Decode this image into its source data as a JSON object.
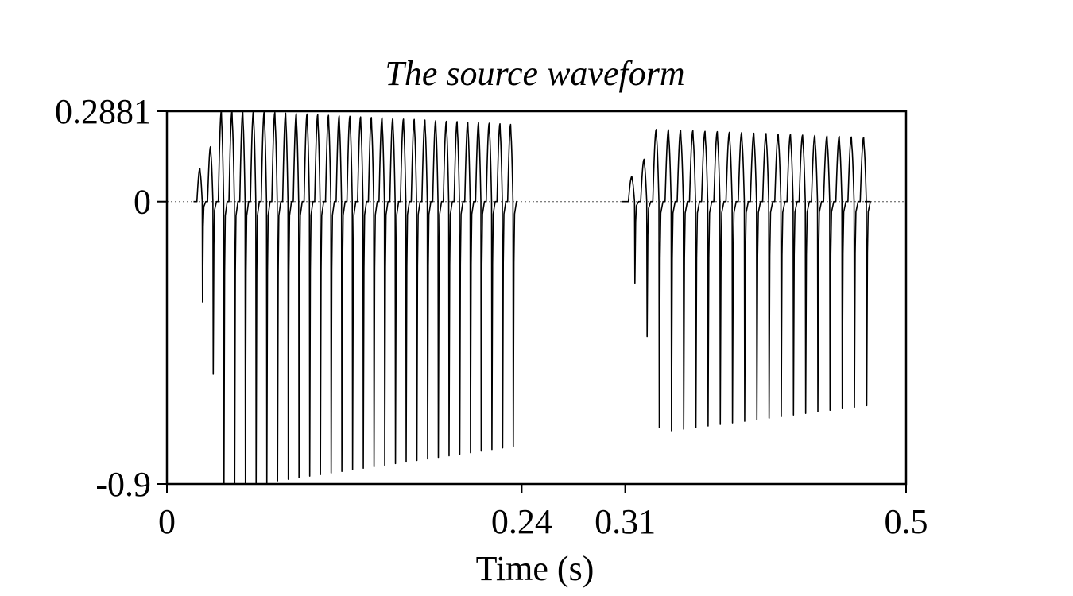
{
  "chart_data": {
    "type": "line",
    "title": "The source waveform",
    "xlabel": "Time (s)",
    "ylabel": "",
    "xlim": [
      0,
      0.5
    ],
    "ylim": [
      -0.9,
      0.2881
    ],
    "x_ticks": [
      "0",
      "0.24",
      "0.31",
      "0.5"
    ],
    "x_tick_values": [
      0,
      0.24,
      0.31,
      0.5
    ],
    "y_ticks": [
      "0.2881",
      "0",
      "-0.9"
    ],
    "y_tick_values": [
      0.2881,
      0,
      -0.9
    ],
    "zero_line": "dotted",
    "grid": false,
    "legend": "none",
    "colors": {
      "trace": "#000000",
      "axes": "#000000",
      "background": "#ffffff"
    },
    "series": [
      {
        "segment": 1,
        "start": 0.018,
        "end": 0.237,
        "pulses": [
          {
            "t": 0.021,
            "peak": 0.105,
            "trough": -0.32
          },
          {
            "t": 0.0282,
            "peak": 0.175,
            "trough": -0.55
          },
          {
            "t": 0.0355,
            "peak": 0.2881,
            "trough": -0.9
          },
          {
            "t": 0.0427,
            "peak": 0.2881,
            "trough": -0.9
          },
          {
            "t": 0.05,
            "peak": 0.2881,
            "trough": -0.9
          },
          {
            "t": 0.0572,
            "peak": 0.2881,
            "trough": -0.9
          },
          {
            "t": 0.0645,
            "peak": 0.286,
            "trough": -0.9
          },
          {
            "t": 0.0717,
            "peak": 0.284,
            "trough": -0.89
          },
          {
            "t": 0.079,
            "peak": 0.282,
            "trough": -0.885
          },
          {
            "t": 0.0862,
            "peak": 0.28,
            "trough": -0.88
          },
          {
            "t": 0.0935,
            "peak": 0.279,
            "trough": -0.875
          },
          {
            "t": 0.1007,
            "peak": 0.277,
            "trough": -0.87
          },
          {
            "t": 0.108,
            "peak": 0.275,
            "trough": -0.865
          },
          {
            "t": 0.1152,
            "peak": 0.273,
            "trough": -0.86
          },
          {
            "t": 0.1225,
            "peak": 0.272,
            "trough": -0.855
          },
          {
            "t": 0.1297,
            "peak": 0.27,
            "trough": -0.85
          },
          {
            "t": 0.137,
            "peak": 0.268,
            "trough": -0.845
          },
          {
            "t": 0.1442,
            "peak": 0.267,
            "trough": -0.84
          },
          {
            "t": 0.1515,
            "peak": 0.265,
            "trough": -0.835
          },
          {
            "t": 0.1587,
            "peak": 0.263,
            "trough": -0.83
          },
          {
            "t": 0.166,
            "peak": 0.262,
            "trough": -0.825
          },
          {
            "t": 0.1732,
            "peak": 0.26,
            "trough": -0.82
          },
          {
            "t": 0.1805,
            "peak": 0.258,
            "trough": -0.815
          },
          {
            "t": 0.1877,
            "peak": 0.256,
            "trough": -0.81
          },
          {
            "t": 0.195,
            "peak": 0.255,
            "trough": -0.805
          },
          {
            "t": 0.2022,
            "peak": 0.253,
            "trough": -0.8
          },
          {
            "t": 0.2095,
            "peak": 0.251,
            "trough": -0.795
          },
          {
            "t": 0.2167,
            "peak": 0.25,
            "trough": -0.79
          },
          {
            "t": 0.224,
            "peak": 0.248,
            "trough": -0.785
          },
          {
            "t": 0.2312,
            "peak": 0.246,
            "trough": -0.78
          }
        ]
      },
      {
        "segment": 2,
        "start": 0.308,
        "end": 0.472,
        "pulses": [
          {
            "t": 0.313,
            "peak": 0.08,
            "trough": -0.26
          },
          {
            "t": 0.3213,
            "peak": 0.135,
            "trough": -0.43
          },
          {
            "t": 0.3295,
            "peak": 0.23,
            "trough": -0.72
          },
          {
            "t": 0.3378,
            "peak": 0.229,
            "trough": -0.73
          },
          {
            "t": 0.346,
            "peak": 0.227,
            "trough": -0.725
          },
          {
            "t": 0.3543,
            "peak": 0.226,
            "trough": -0.72
          },
          {
            "t": 0.3625,
            "peak": 0.224,
            "trough": -0.715
          },
          {
            "t": 0.3708,
            "peak": 0.223,
            "trough": -0.71
          },
          {
            "t": 0.379,
            "peak": 0.221,
            "trough": -0.705
          },
          {
            "t": 0.3873,
            "peak": 0.22,
            "trough": -0.7
          },
          {
            "t": 0.3955,
            "peak": 0.218,
            "trough": -0.695
          },
          {
            "t": 0.4038,
            "peak": 0.217,
            "trough": -0.69
          },
          {
            "t": 0.412,
            "peak": 0.215,
            "trough": -0.685
          },
          {
            "t": 0.4203,
            "peak": 0.214,
            "trough": -0.68
          },
          {
            "t": 0.4285,
            "peak": 0.212,
            "trough": -0.675
          },
          {
            "t": 0.4368,
            "peak": 0.211,
            "trough": -0.67
          },
          {
            "t": 0.445,
            "peak": 0.209,
            "trough": -0.665
          },
          {
            "t": 0.4533,
            "peak": 0.208,
            "trough": -0.66
          },
          {
            "t": 0.4615,
            "peak": 0.206,
            "trough": -0.655
          },
          {
            "t": 0.4698,
            "peak": 0.205,
            "trough": -0.65
          }
        ]
      }
    ]
  }
}
